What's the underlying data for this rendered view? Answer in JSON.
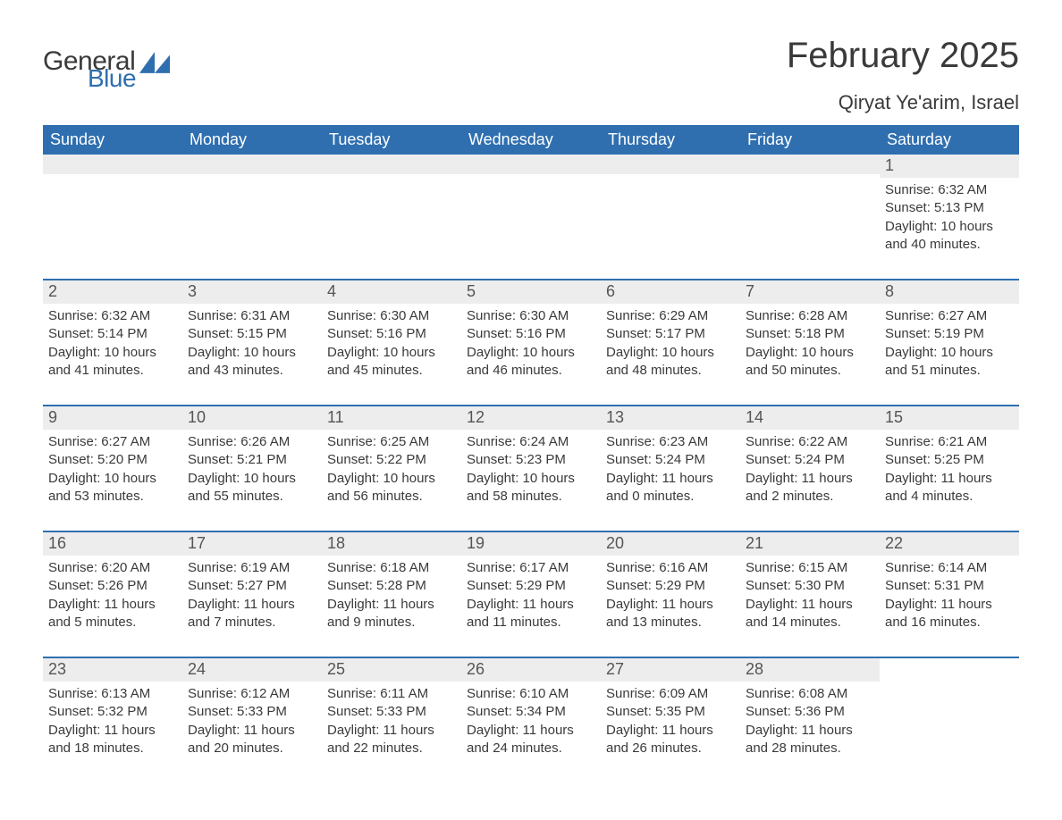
{
  "brand": {
    "name_part1": "General",
    "name_part2": "Blue",
    "text_color": "#3a3a3a",
    "accent_color": "#2f6fb0"
  },
  "title": {
    "month_year": "February 2025",
    "location": "Qiryat Ye'arim, Israel"
  },
  "colors": {
    "header_bg": "#2f6fb0",
    "header_text": "#ffffff",
    "band_bg": "#ededed",
    "rule": "#2f6fb0",
    "body_text": "#3a3a3a",
    "page_bg": "#ffffff"
  },
  "typography": {
    "title_fontsize": 40,
    "location_fontsize": 22,
    "dow_fontsize": 18,
    "daynum_fontsize": 18,
    "body_fontsize": 15
  },
  "days_of_week": [
    "Sunday",
    "Monday",
    "Tuesday",
    "Wednesday",
    "Thursday",
    "Friday",
    "Saturday"
  ],
  "weeks": [
    [
      {
        "empty": true
      },
      {
        "empty": true
      },
      {
        "empty": true
      },
      {
        "empty": true
      },
      {
        "empty": true
      },
      {
        "empty": true
      },
      {
        "n": "1",
        "sunrise": "Sunrise: 6:32 AM",
        "sunset": "Sunset: 5:13 PM",
        "day1": "Daylight: 10 hours",
        "day2": "and 40 minutes."
      }
    ],
    [
      {
        "n": "2",
        "sunrise": "Sunrise: 6:32 AM",
        "sunset": "Sunset: 5:14 PM",
        "day1": "Daylight: 10 hours",
        "day2": "and 41 minutes."
      },
      {
        "n": "3",
        "sunrise": "Sunrise: 6:31 AM",
        "sunset": "Sunset: 5:15 PM",
        "day1": "Daylight: 10 hours",
        "day2": "and 43 minutes."
      },
      {
        "n": "4",
        "sunrise": "Sunrise: 6:30 AM",
        "sunset": "Sunset: 5:16 PM",
        "day1": "Daylight: 10 hours",
        "day2": "and 45 minutes."
      },
      {
        "n": "5",
        "sunrise": "Sunrise: 6:30 AM",
        "sunset": "Sunset: 5:16 PM",
        "day1": "Daylight: 10 hours",
        "day2": "and 46 minutes."
      },
      {
        "n": "6",
        "sunrise": "Sunrise: 6:29 AM",
        "sunset": "Sunset: 5:17 PM",
        "day1": "Daylight: 10 hours",
        "day2": "and 48 minutes."
      },
      {
        "n": "7",
        "sunrise": "Sunrise: 6:28 AM",
        "sunset": "Sunset: 5:18 PM",
        "day1": "Daylight: 10 hours",
        "day2": "and 50 minutes."
      },
      {
        "n": "8",
        "sunrise": "Sunrise: 6:27 AM",
        "sunset": "Sunset: 5:19 PM",
        "day1": "Daylight: 10 hours",
        "day2": "and 51 minutes."
      }
    ],
    [
      {
        "n": "9",
        "sunrise": "Sunrise: 6:27 AM",
        "sunset": "Sunset: 5:20 PM",
        "day1": "Daylight: 10 hours",
        "day2": "and 53 minutes."
      },
      {
        "n": "10",
        "sunrise": "Sunrise: 6:26 AM",
        "sunset": "Sunset: 5:21 PM",
        "day1": "Daylight: 10 hours",
        "day2": "and 55 minutes."
      },
      {
        "n": "11",
        "sunrise": "Sunrise: 6:25 AM",
        "sunset": "Sunset: 5:22 PM",
        "day1": "Daylight: 10 hours",
        "day2": "and 56 minutes."
      },
      {
        "n": "12",
        "sunrise": "Sunrise: 6:24 AM",
        "sunset": "Sunset: 5:23 PM",
        "day1": "Daylight: 10 hours",
        "day2": "and 58 minutes."
      },
      {
        "n": "13",
        "sunrise": "Sunrise: 6:23 AM",
        "sunset": "Sunset: 5:24 PM",
        "day1": "Daylight: 11 hours",
        "day2": "and 0 minutes."
      },
      {
        "n": "14",
        "sunrise": "Sunrise: 6:22 AM",
        "sunset": "Sunset: 5:24 PM",
        "day1": "Daylight: 11 hours",
        "day2": "and 2 minutes."
      },
      {
        "n": "15",
        "sunrise": "Sunrise: 6:21 AM",
        "sunset": "Sunset: 5:25 PM",
        "day1": "Daylight: 11 hours",
        "day2": "and 4 minutes."
      }
    ],
    [
      {
        "n": "16",
        "sunrise": "Sunrise: 6:20 AM",
        "sunset": "Sunset: 5:26 PM",
        "day1": "Daylight: 11 hours",
        "day2": "and 5 minutes."
      },
      {
        "n": "17",
        "sunrise": "Sunrise: 6:19 AM",
        "sunset": "Sunset: 5:27 PM",
        "day1": "Daylight: 11 hours",
        "day2": "and 7 minutes."
      },
      {
        "n": "18",
        "sunrise": "Sunrise: 6:18 AM",
        "sunset": "Sunset: 5:28 PM",
        "day1": "Daylight: 11 hours",
        "day2": "and 9 minutes."
      },
      {
        "n": "19",
        "sunrise": "Sunrise: 6:17 AM",
        "sunset": "Sunset: 5:29 PM",
        "day1": "Daylight: 11 hours",
        "day2": "and 11 minutes."
      },
      {
        "n": "20",
        "sunrise": "Sunrise: 6:16 AM",
        "sunset": "Sunset: 5:29 PM",
        "day1": "Daylight: 11 hours",
        "day2": "and 13 minutes."
      },
      {
        "n": "21",
        "sunrise": "Sunrise: 6:15 AM",
        "sunset": "Sunset: 5:30 PM",
        "day1": "Daylight: 11 hours",
        "day2": "and 14 minutes."
      },
      {
        "n": "22",
        "sunrise": "Sunrise: 6:14 AM",
        "sunset": "Sunset: 5:31 PM",
        "day1": "Daylight: 11 hours",
        "day2": "and 16 minutes."
      }
    ],
    [
      {
        "n": "23",
        "sunrise": "Sunrise: 6:13 AM",
        "sunset": "Sunset: 5:32 PM",
        "day1": "Daylight: 11 hours",
        "day2": "and 18 minutes."
      },
      {
        "n": "24",
        "sunrise": "Sunrise: 6:12 AM",
        "sunset": "Sunset: 5:33 PM",
        "day1": "Daylight: 11 hours",
        "day2": "and 20 minutes."
      },
      {
        "n": "25",
        "sunrise": "Sunrise: 6:11 AM",
        "sunset": "Sunset: 5:33 PM",
        "day1": "Daylight: 11 hours",
        "day2": "and 22 minutes."
      },
      {
        "n": "26",
        "sunrise": "Sunrise: 6:10 AM",
        "sunset": "Sunset: 5:34 PM",
        "day1": "Daylight: 11 hours",
        "day2": "and 24 minutes."
      },
      {
        "n": "27",
        "sunrise": "Sunrise: 6:09 AM",
        "sunset": "Sunset: 5:35 PM",
        "day1": "Daylight: 11 hours",
        "day2": "and 26 minutes."
      },
      {
        "n": "28",
        "sunrise": "Sunrise: 6:08 AM",
        "sunset": "Sunset: 5:36 PM",
        "day1": "Daylight: 11 hours",
        "day2": "and 28 minutes."
      },
      {
        "empty": true,
        "noband": true
      }
    ]
  ]
}
